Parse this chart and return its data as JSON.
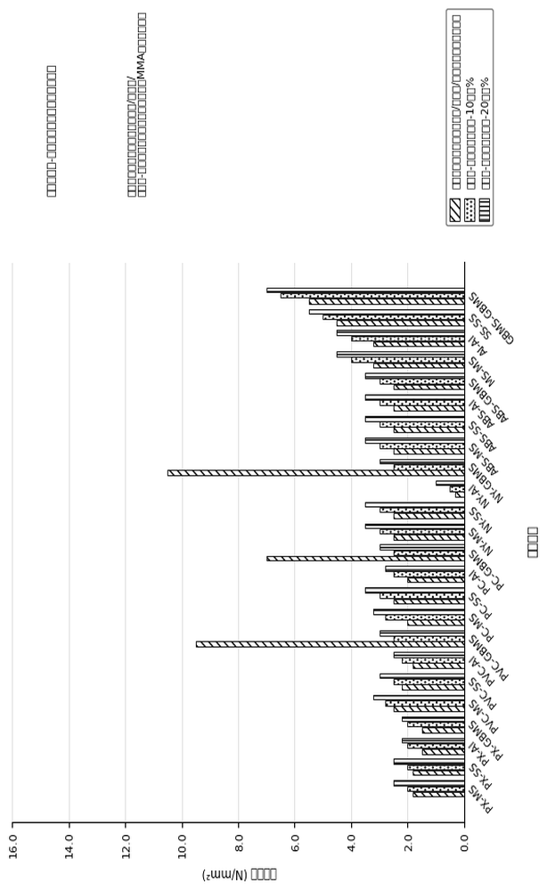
{
  "categories": [
    "PX-MS",
    "PX-SS",
    "PX-AI",
    "PX-GBMS",
    "PVC-MS",
    "PVC-SS",
    "PVC-AI",
    "PVC-GBMS",
    "PC-MS",
    "PC-SS",
    "PC-AI",
    "PC-GBMS",
    "NY-MS",
    "NY-SS",
    "NY-AI",
    "NY-GBMS",
    "ABS-MS",
    "ABS-SS",
    "ABS-AI",
    "ABS-GBMS",
    "MS-MS",
    "AI-AI",
    "SS-SS",
    "GBMS-GBMS"
  ],
  "s1": [
    2.5,
    2.5,
    2.2,
    2.2,
    3.2,
    3.0,
    2.5,
    3.0,
    3.2,
    3.5,
    2.8,
    3.0,
    3.5,
    3.5,
    1.0,
    3.0,
    3.5,
    3.5,
    3.5,
    3.5,
    4.5,
    4.5,
    5.5,
    7.0
  ],
  "s2": [
    2.0,
    2.0,
    2.0,
    2.0,
    2.8,
    2.5,
    2.2,
    2.5,
    2.8,
    3.0,
    2.5,
    2.5,
    3.0,
    3.0,
    0.5,
    2.5,
    3.0,
    3.0,
    3.0,
    3.0,
    4.0,
    4.0,
    5.0,
    6.5
  ],
  "s3": [
    1.8,
    1.8,
    1.5,
    1.5,
    2.5,
    2.2,
    1.8,
    9.5,
    2.0,
    2.5,
    2.0,
    7.0,
    2.5,
    2.5,
    0.3,
    10.5,
    2.5,
    2.5,
    2.5,
    2.5,
    3.2,
    3.2,
    4.5,
    5.5
  ],
  "xlabel": "拉伸强度 (N/mm²)",
  "ylabel": "基材组合",
  "title1": "包含苯乙烯-丁二烯段共聚物增韧剂相对于",
  "title2": "包含甲基丙烯酸酯化的聚丁二烯/苯乙烯/苯乙烯-丁二烯段共聚物增韧剂的组合的MMA组合物的比较",
  "legend1": "甲基丙烯酸酯化的聚丁二烯/苯乙烯/苯乙烯段共聚物增韧剂",
  "legend2": "苯乙烯-丁二烯段共聚物-10重量%",
  "legend3": "苯乙烯-丁二烯段共聚物-20重量%",
  "xlim": [
    0,
    16
  ],
  "xticks": [
    0.0,
    2.0,
    4.0,
    6.0,
    8.0,
    10.0,
    12.0,
    14.0,
    16.0
  ],
  "bg": "#ffffff"
}
